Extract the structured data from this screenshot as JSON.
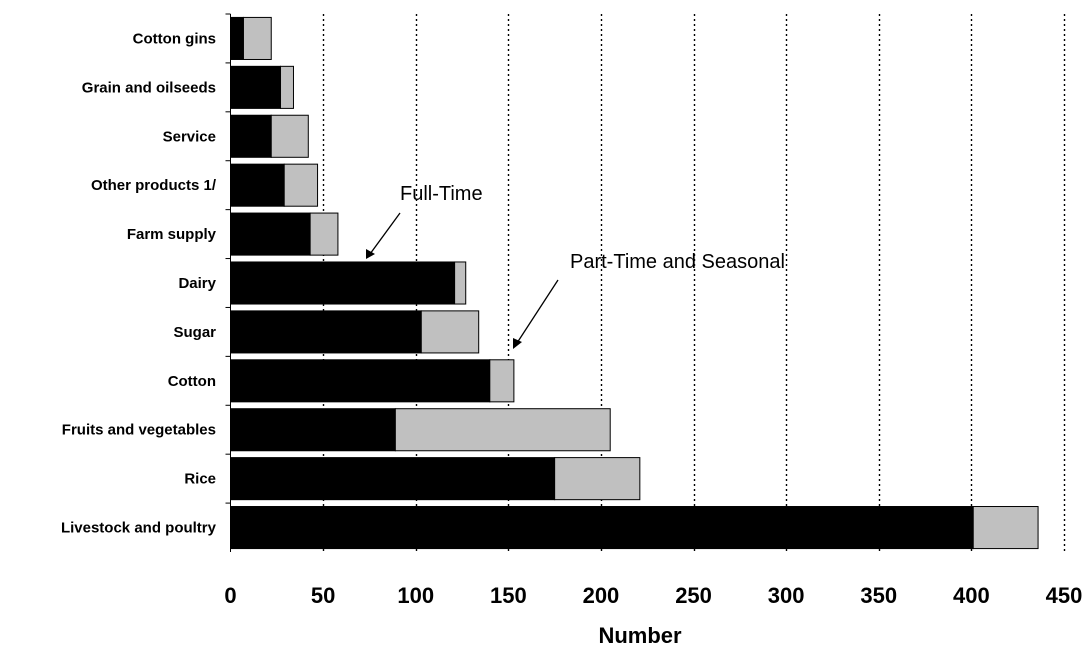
{
  "chart_data": {
    "type": "bar",
    "orientation": "horizontal",
    "stacked": true,
    "categories": [
      "Cotton gins",
      "Grain and oilseeds",
      "Service",
      "Other products 1/",
      "Farm supply",
      "Dairy",
      "Sugar",
      "Cotton",
      "Fruits and vegetables",
      "Rice",
      "Livestock and poultry"
    ],
    "series": [
      {
        "name": "Full-Time",
        "color": "#000000",
        "values": [
          7,
          27,
          22,
          29,
          43,
          121,
          103,
          140,
          89,
          175,
          401
        ]
      },
      {
        "name": "Part-Time and Seasonal",
        "color": "#c0c0c0",
        "values": [
          15,
          7,
          20,
          18,
          15,
          6,
          31,
          13,
          116,
          46,
          35
        ]
      }
    ],
    "xlabel": "Number",
    "xlim": [
      0,
      450
    ],
    "xticks": [
      0,
      50,
      100,
      150,
      200,
      250,
      300,
      350,
      400,
      450
    ],
    "grid": "vertical dotted",
    "legend": "none",
    "annotations": [
      {
        "text": "Full-Time"
      },
      {
        "text": "Part-Time and Seasonal"
      }
    ]
  }
}
